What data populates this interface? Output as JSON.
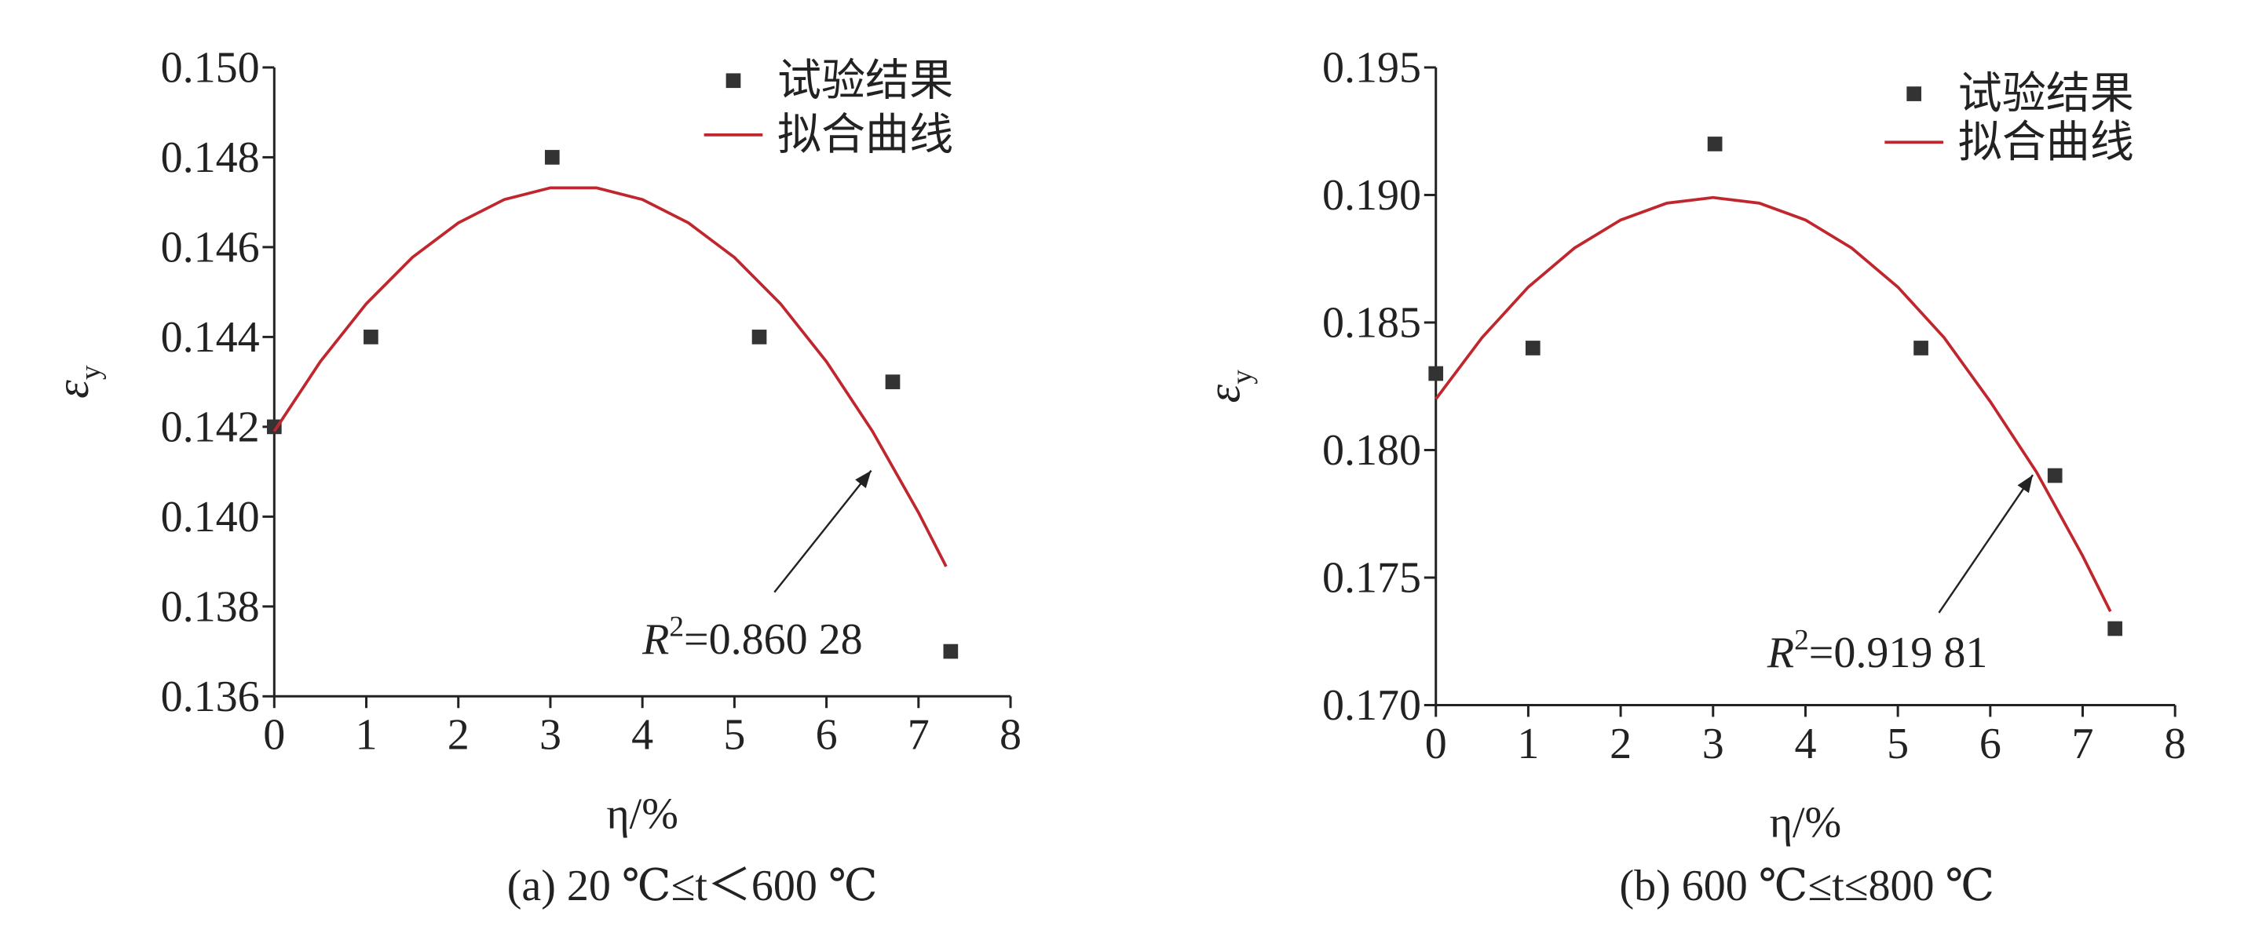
{
  "chart_data": [
    {
      "type": "scatter",
      "caption": "(a) 20 ℃≤t＜600 ℃",
      "y_label": {
        "symbol": "ε",
        "subscript": "y"
      },
      "x_label": "η/%",
      "annotation": {
        "symbol": "R",
        "superscript": "2",
        "text": "=0.860 28"
      },
      "xlim": [
        0,
        8
      ],
      "xticks": [
        0,
        1,
        2,
        3,
        4,
        5,
        6,
        7,
        8
      ],
      "ylim": [
        0.136,
        0.15
      ],
      "yticks": [
        0.136,
        0.138,
        {
          "value": 0.14,
          "label": "0.140"
        },
        0.142,
        0.144,
        0.146,
        0.148,
        {
          "value": 0.15,
          "label": "0.150"
        }
      ],
      "series": [
        {
          "name": "试验结果",
          "type": "scatter",
          "color": "#333333",
          "x": [
            0,
            1.05,
            3.02,
            5.27,
            6.72,
            7.35
          ],
          "values": [
            0.142,
            0.144,
            0.148,
            0.144,
            0.143,
            0.137
          ]
        },
        {
          "name": "拟合曲线",
          "type": "line",
          "color": "#c0262d",
          "x": [
            0,
            0.5,
            1,
            1.5,
            2,
            2.5,
            3,
            3.5,
            4,
            4.5,
            5,
            5.5,
            6,
            6.5,
            7,
            7.3
          ],
          "values": [
            0.1419,
            0.14345,
            0.14474,
            0.14577,
            0.14654,
            0.14706,
            0.14732,
            0.14732,
            0.14706,
            0.14654,
            0.14577,
            0.14474,
            0.14345,
            0.1419,
            0.14009,
            0.13889
          ]
        }
      ]
    },
    {
      "type": "scatter",
      "caption": "(b) 600 ℃≤t≤800 ℃",
      "y_label": {
        "symbol": "ε",
        "subscript": "y"
      },
      "x_label": "η/%",
      "annotation": {
        "symbol": "R",
        "superscript": "2",
        "text": "=0.919 81"
      },
      "xlim": [
        0,
        8
      ],
      "xticks": [
        0,
        1,
        2,
        3,
        4,
        5,
        6,
        7,
        8
      ],
      "ylim": [
        0.17,
        0.195
      ],
      "yticks": [
        {
          "value": 0.17,
          "label": "0.170"
        },
        0.175,
        {
          "value": 0.18,
          "label": "0.180"
        },
        0.185,
        {
          "value": 0.19,
          "label": "0.190"
        },
        0.195
      ],
      "series": [
        {
          "name": "试验结果",
          "type": "scatter",
          "color": "#333333",
          "x": [
            0,
            1.05,
            3.02,
            5.25,
            6.7,
            7.35
          ],
          "values": [
            0.183,
            0.184,
            0.192,
            0.184,
            0.179,
            0.173
          ]
        },
        {
          "name": "拟合曲线",
          "type": "line",
          "color": "#c0262d",
          "x": [
            0,
            0.5,
            1,
            1.5,
            2,
            2.5,
            3,
            3.5,
            4,
            4.5,
            5,
            5.5,
            6,
            6.5,
            7,
            7.3
          ],
          "values": [
            0.182,
            0.18441,
            0.18639,
            0.18792,
            0.18902,
            0.18968,
            0.1899,
            0.18968,
            0.18902,
            0.18792,
            0.18639,
            0.18441,
            0.1819,
            0.17914,
            0.17585,
            0.17367
          ]
        }
      ]
    }
  ]
}
